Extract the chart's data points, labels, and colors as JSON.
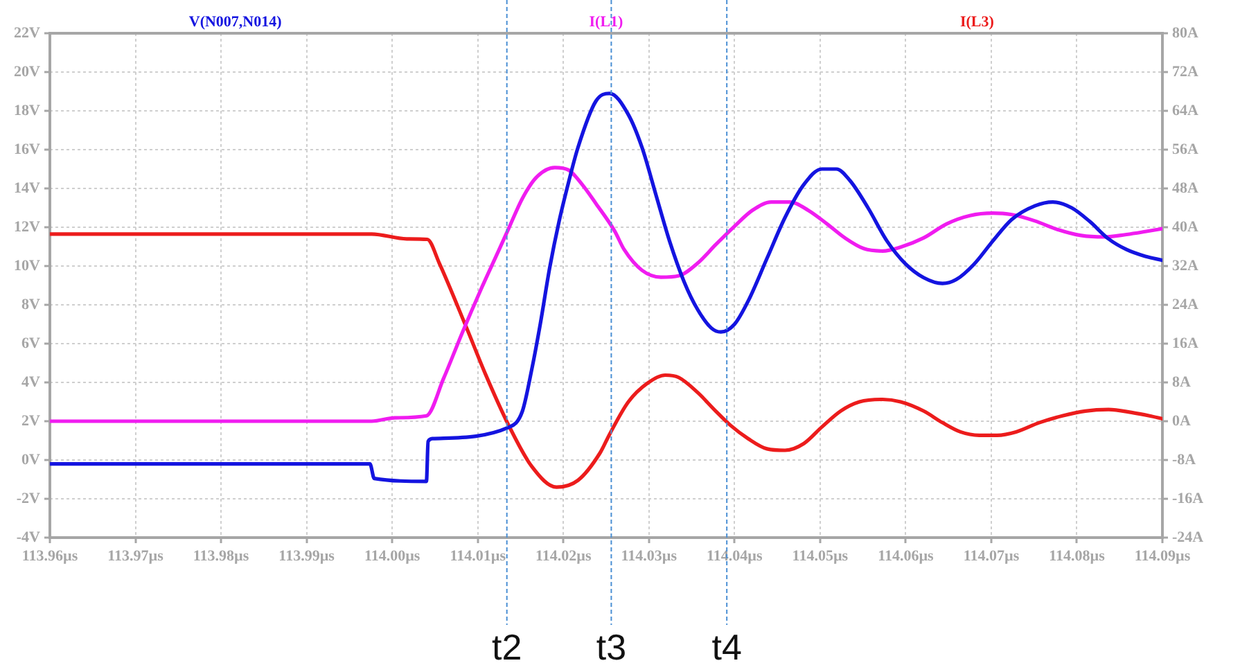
{
  "chart_data": {
    "type": "line",
    "xlim": [
      113.96,
      114.09
    ],
    "xticks": [
      {
        "value": 113.96,
        "label": "113.96µs"
      },
      {
        "value": 113.97,
        "label": "113.97µs"
      },
      {
        "value": 113.98,
        "label": "113.98µs"
      },
      {
        "value": 113.99,
        "label": "113.99µs"
      },
      {
        "value": 114.0,
        "label": "114.00µs"
      },
      {
        "value": 114.01,
        "label": "114.01µs"
      },
      {
        "value": 114.02,
        "label": "114.02µs"
      },
      {
        "value": 114.03,
        "label": "114.03µs"
      },
      {
        "value": 114.04,
        "label": "114.04µs"
      },
      {
        "value": 114.05,
        "label": "114.05µs"
      },
      {
        "value": 114.06,
        "label": "114.06µs"
      },
      {
        "value": 114.07,
        "label": "114.07µs"
      },
      {
        "value": 114.08,
        "label": "114.08µs"
      },
      {
        "value": 114.09,
        "label": "114.09µs"
      }
    ],
    "ylim": [
      -4,
      22
    ],
    "yticks": [
      {
        "value": 22,
        "label": "22V"
      },
      {
        "value": 20,
        "label": "20V"
      },
      {
        "value": 18,
        "label": "18V"
      },
      {
        "value": 16,
        "label": "16V"
      },
      {
        "value": 14,
        "label": "14V"
      },
      {
        "value": 12,
        "label": "12V"
      },
      {
        "value": 10,
        "label": "10V"
      },
      {
        "value": 8,
        "label": "8V"
      },
      {
        "value": 6,
        "label": "6V"
      },
      {
        "value": 4,
        "label": "4V"
      },
      {
        "value": 2,
        "label": "2V"
      },
      {
        "value": 0,
        "label": "0V"
      },
      {
        "value": -2,
        "label": "-2V"
      },
      {
        "value": -4,
        "label": "-4V"
      }
    ],
    "y2lim": [
      -24,
      80
    ],
    "y2ticks": [
      {
        "value": 80,
        "label": "80A"
      },
      {
        "value": 72,
        "label": "72A"
      },
      {
        "value": 64,
        "label": "64A"
      },
      {
        "value": 56,
        "label": "56A"
      },
      {
        "value": 48,
        "label": "48A"
      },
      {
        "value": 40,
        "label": "40A"
      },
      {
        "value": 32,
        "label": "32A"
      },
      {
        "value": 24,
        "label": "24A"
      },
      {
        "value": 16,
        "label": "16A"
      },
      {
        "value": 8,
        "label": "8A"
      },
      {
        "value": 0,
        "label": "0A"
      },
      {
        "value": -8,
        "label": "-8A"
      },
      {
        "value": -16,
        "label": "-16A"
      },
      {
        "value": -24,
        "label": "-24A"
      }
    ],
    "grid": true,
    "series": [
      {
        "name": "V(N007,N014)",
        "color": "#1414e0",
        "x": [
          113.96,
          113.9974,
          113.9979,
          114.004,
          114.0042,
          114.0047,
          114.0136,
          114.0152,
          114.0163,
          114.0173,
          114.0184,
          114.0195,
          114.0206,
          114.0217,
          114.0238,
          114.0254,
          114.0276,
          114.0292,
          114.0308,
          114.0324,
          114.0341,
          114.0357,
          114.0373,
          114.0384,
          114.04,
          114.0416,
          114.0438,
          114.0459,
          114.0481,
          114.0502,
          114.0519,
          114.0535,
          114.0556,
          114.0578,
          114.06,
          114.0621,
          114.0643,
          114.0659,
          114.068,
          114.0702,
          114.0724,
          114.0751,
          114.0772,
          114.0794,
          114.0815,
          114.0837,
          114.0858,
          114.088,
          114.09
        ],
        "values": [
          -0.2,
          -0.2,
          -0.95,
          -1.1,
          0.96,
          1.1,
          1.68,
          2.5,
          4.65,
          7.0,
          9.9,
          12.3,
          14.3,
          16.1,
          18.5,
          18.9,
          17.8,
          16.1,
          13.7,
          11.3,
          9.2,
          7.75,
          6.8,
          6.6,
          7.0,
          8.2,
          10.4,
          12.5,
          14.2,
          15.0,
          15.0,
          14.4,
          13.0,
          11.3,
          10.1,
          9.4,
          9.1,
          9.3,
          10.1,
          11.3,
          12.4,
          13.1,
          13.3,
          13.0,
          12.3,
          11.4,
          10.85,
          10.5,
          10.3
        ]
      },
      {
        "name": "I(L1)",
        "color": "#f01cf0",
        "axis": "y2",
        "x": [
          113.96,
          113.9976,
          114.0003,
          114.004,
          114.006,
          114.0082,
          114.0103,
          114.0125,
          114.0136,
          114.0152,
          114.0168,
          114.019,
          114.0206,
          114.0222,
          114.0238,
          114.026,
          114.0271,
          114.0292,
          114.0314,
          114.0335,
          114.0357,
          114.0378,
          114.04,
          114.0421,
          114.0443,
          114.0465,
          114.0486,
          114.0508,
          114.0529,
          114.0551,
          114.0573,
          114.0594,
          114.0621,
          114.0648,
          114.0675,
          114.0702,
          114.0724,
          114.0751,
          114.0778,
          114.0805,
          114.0832,
          114.0858,
          114.088,
          114.09
        ],
        "values": [
          0,
          0,
          0.7,
          1.1,
          8.8,
          18.3,
          26.9,
          35.4,
          39.7,
          45.9,
          50.2,
          52.3,
          51.8,
          48.8,
          44.9,
          39.2,
          35.4,
          31.1,
          29.7,
          30.0,
          32.6,
          36.4,
          40.2,
          43.5,
          45.2,
          45.2,
          43.5,
          40.7,
          37.8,
          35.6,
          35.1,
          35.9,
          37.8,
          40.7,
          42.4,
          42.9,
          42.6,
          41.3,
          39.5,
          38.3,
          38.0,
          38.5,
          39.1,
          39.7
        ]
      },
      {
        "name": "I(L3)",
        "color": "#ec1c1c",
        "axis": "y2",
        "x": [
          113.96,
          113.9976,
          114.0017,
          114.0041,
          114.0055,
          114.0087,
          114.0109,
          114.0136,
          114.0163,
          114.0192,
          114.0217,
          114.0243,
          114.0254,
          114.0276,
          114.0298,
          114.0319,
          114.0335,
          114.0357,
          114.0378,
          114.0395,
          114.0416,
          114.0438,
          114.0459,
          114.0481,
          114.0502,
          114.0524,
          114.0546,
          114.0573,
          114.0594,
          114.0621,
          114.0643,
          114.0664,
          114.0686,
          114.0707,
          114.0729,
          114.0756,
          114.0783,
          114.081,
          114.0837,
          114.0864,
          114.0885,
          114.09
        ],
        "values": [
          38.6,
          38.6,
          37.6,
          37.5,
          32.6,
          19.2,
          9.7,
          -0.8,
          -9.3,
          -13.6,
          -12.2,
          -6.5,
          -2.7,
          4.0,
          7.8,
          9.5,
          9.0,
          5.9,
          2.1,
          -0.8,
          -3.6,
          -5.7,
          -6.0,
          -4.6,
          -1.2,
          2.1,
          4.0,
          4.5,
          4.0,
          2.1,
          -0.3,
          -2.2,
          -2.9,
          -2.9,
          -2.2,
          -0.3,
          1.1,
          2.1,
          2.4,
          1.8,
          1.1,
          0.5
        ]
      }
    ],
    "ref_lines": [
      {
        "axis": "x",
        "value": 114.0134,
        "label": "t2",
        "color": "#4a8fd4",
        "line_style": "dashed"
      },
      {
        "axis": "x",
        "value": 114.0256,
        "label": "t3",
        "color": "#4a8fd4",
        "line_style": "dashed"
      },
      {
        "axis": "x",
        "value": 114.0391,
        "label": "t4",
        "color": "#4a8fd4",
        "line_style": "dashed"
      }
    ]
  }
}
